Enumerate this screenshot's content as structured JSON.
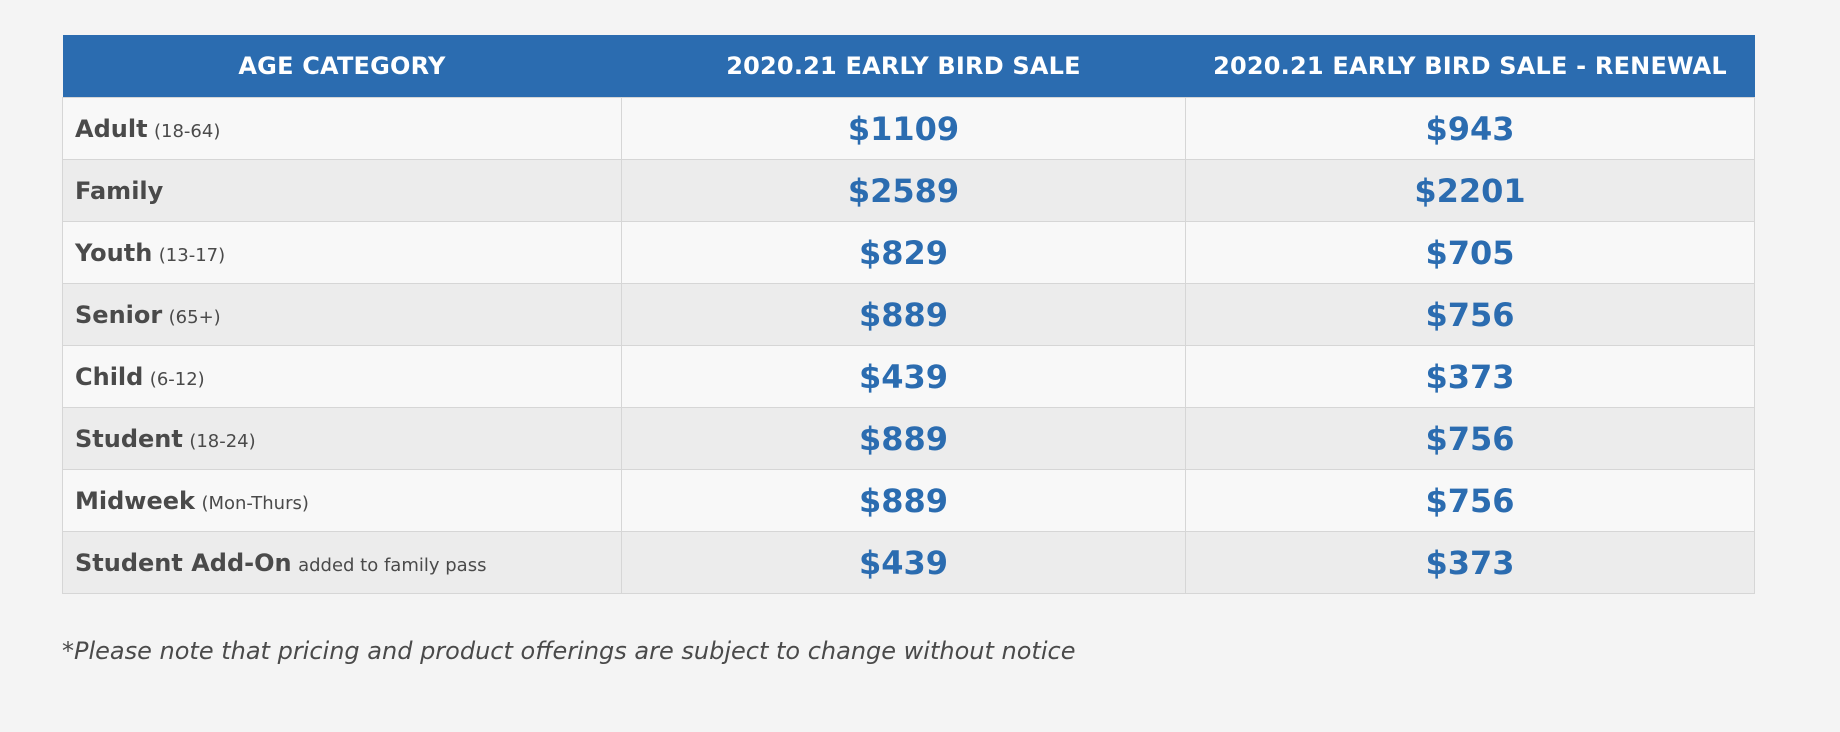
{
  "table": {
    "headers": [
      "AGE CATEGORY",
      "2020.21 EARLY BIRD SALE",
      "2020.21 EARLY BIRD SALE - RENEWAL"
    ],
    "rows": [
      {
        "name": "Adult",
        "note": "(18-64)",
        "early_bird": "$1109",
        "renewal": "$943"
      },
      {
        "name": "Family",
        "note": "",
        "early_bird": "$2589",
        "renewal": "$2201"
      },
      {
        "name": "Youth",
        "note": "(13-17)",
        "early_bird": "$829",
        "renewal": "$705"
      },
      {
        "name": "Senior",
        "note": "(65+)",
        "early_bird": "$889",
        "renewal": "$756"
      },
      {
        "name": "Child",
        "note": "(6-12)",
        "early_bird": "$439",
        "renewal": "$373"
      },
      {
        "name": "Student",
        "note": "(18-24)",
        "early_bird": "$889",
        "renewal": "$756"
      },
      {
        "name": "Midweek",
        "note": "(Mon-Thurs)",
        "early_bird": "$889",
        "renewal": "$756"
      },
      {
        "name": "Student Add-On",
        "note": "added to family pass",
        "early_bird": "$439",
        "renewal": "$373"
      }
    ]
  },
  "footnote": "*Please note that pricing and product offerings are subject to change without notice",
  "colors": {
    "header_bg": "#2b6cb0",
    "price_text": "#2b6cb0",
    "category_text": "#4a4a4a",
    "page_bg": "#f4f4f4"
  }
}
